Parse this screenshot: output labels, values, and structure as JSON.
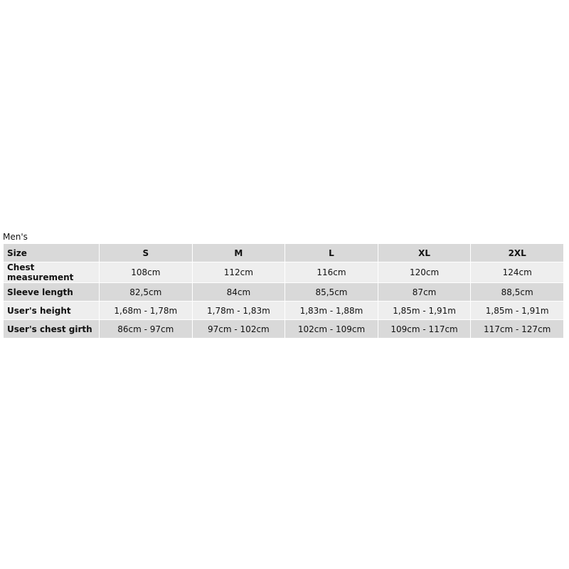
{
  "title": "Men's",
  "table": {
    "header": [
      "Size",
      "S",
      "M",
      "L",
      "XL",
      "2XL"
    ],
    "rows": [
      [
        "Chest measurement",
        "108cm",
        "112cm",
        "116cm",
        "120cm",
        "124cm"
      ],
      [
        "Sleeve length",
        "82,5cm",
        "84cm",
        "85,5cm",
        "87cm",
        "88,5cm"
      ],
      [
        "User's height",
        "1,68m - 1,78m",
        "1,78m - 1,83m",
        "1,83m - 1,88m",
        "1,85m - 1,91m",
        "1,85m - 1,91m"
      ],
      [
        "User's chest girth",
        "86cm - 97cm",
        "97cm - 102cm",
        "102cm - 109cm",
        "109cm - 117cm",
        "117cm - 127cm"
      ]
    ]
  }
}
